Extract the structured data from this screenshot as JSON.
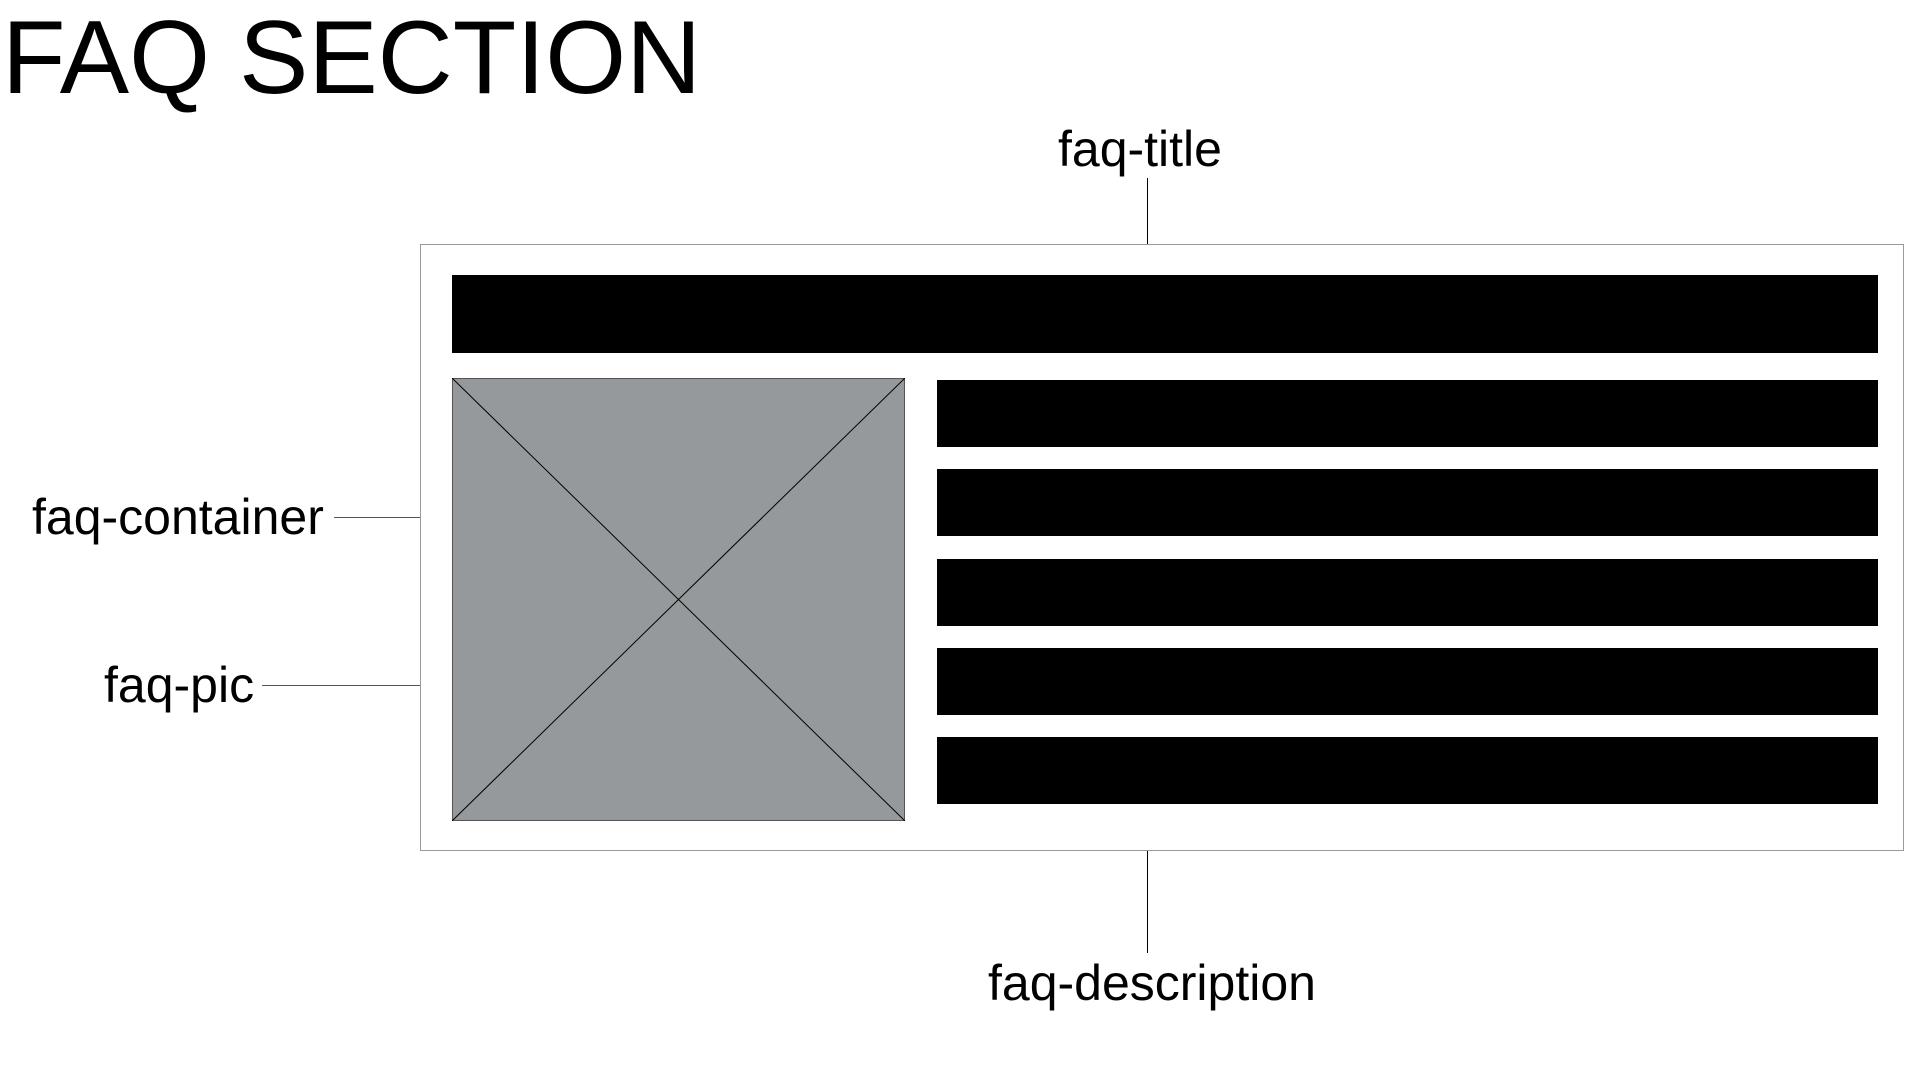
{
  "page": {
    "title": "FAQ SECTION"
  },
  "labels": {
    "faq_title": "faq-title",
    "faq_container": "faq-container",
    "faq_pic": "faq-pic",
    "faq_description": "faq-description"
  },
  "colors": {
    "bar_fill": "#000000",
    "image_placeholder_fill": "#96999b",
    "container_border": "#9a9a9a",
    "leader_line": "#000000"
  },
  "description_line_count": 5
}
